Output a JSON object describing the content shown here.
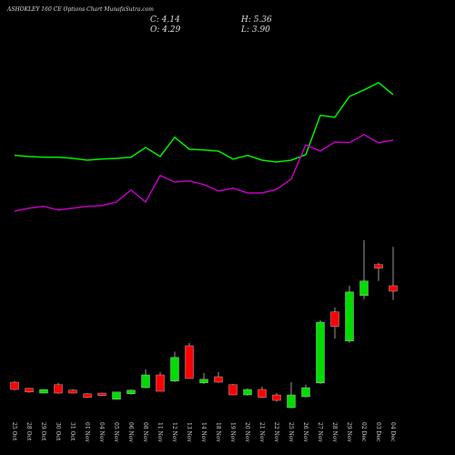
{
  "chart_data": {
    "type": "candlestick",
    "title": "ASHOKLEY 160  CE Options Chart MunafaSutra.com",
    "info": [
      {
        "label": "C: 4.14"
      },
      {
        "label": "H: 5.36"
      },
      {
        "label": "O: 4.29"
      },
      {
        "label": "L: 3.90"
      }
    ],
    "categories": [
      "25 Oct",
      "28 Oct",
      "29 Oct",
      "30 Oct",
      "31 Oct",
      "01 Nov",
      "04 Nov",
      "05 Nov",
      "06 Nov",
      "08 Nov",
      "11 Nov",
      "12 Nov",
      "13 Nov",
      "14 Nov",
      "18 Nov",
      "19 Nov",
      "20 Nov",
      "21 Nov",
      "22 Nov",
      "25 Nov",
      "26 Nov",
      "27 Nov",
      "28 Nov",
      "29 Nov",
      "02 Dec",
      "03 Dec",
      "04 Dec"
    ],
    "open": [
      1.64,
      1.47,
      1.34,
      1.57,
      1.42,
      1.32,
      1.34,
      1.17,
      1.32,
      1.49,
      1.84,
      1.67,
      2.64,
      1.62,
      1.79,
      1.57,
      1.29,
      1.44,
      1.29,
      0.94,
      1.24,
      1.62,
      3.57,
      2.77,
      4.02,
      4.87,
      4.29
    ],
    "high": [
      1.67,
      1.48,
      1.45,
      1.62,
      1.45,
      1.34,
      1.35,
      1.37,
      1.44,
      1.99,
      1.92,
      2.48,
      2.72,
      1.89,
      1.92,
      1.59,
      1.47,
      1.52,
      1.34,
      1.64,
      1.57,
      3.34,
      3.69,
      4.29,
      5.54,
      4.92,
      5.36
    ],
    "low": [
      1.42,
      1.35,
      1.33,
      1.32,
      1.33,
      1.21,
      1.26,
      1.16,
      1.3,
      1.47,
      1.39,
      1.64,
      1.74,
      1.59,
      1.62,
      1.29,
      1.27,
      1.21,
      1.11,
      0.92,
      1.22,
      1.59,
      2.84,
      2.72,
      3.92,
      4.42,
      3.9
    ],
    "close": [
      1.44,
      1.37,
      1.44,
      1.34,
      1.34,
      1.22,
      1.27,
      1.37,
      1.42,
      1.84,
      1.39,
      2.32,
      1.74,
      1.72,
      1.64,
      1.29,
      1.44,
      1.22,
      1.14,
      1.29,
      1.49,
      3.29,
      3.17,
      4.12,
      4.42,
      4.77,
      4.14
    ],
    "up_color": "#00dd00",
    "down_color": "#ff0000",
    "series": [
      {
        "color": "#00ee00",
        "values": [
          7.87,
          7.84,
          7.82,
          7.82,
          7.79,
          7.74,
          7.77,
          7.79,
          7.82,
          8.09,
          7.84,
          8.37,
          8.04,
          8.02,
          7.99,
          7.77,
          7.87,
          7.74,
          7.69,
          7.74,
          7.89,
          8.97,
          8.92,
          9.49,
          9.67,
          9.87,
          9.54
        ]
      },
      {
        "color": "#c000c0",
        "values": [
          6.34,
          6.42,
          6.47,
          6.37,
          6.42,
          6.47,
          6.49,
          6.59,
          6.92,
          6.59,
          7.32,
          7.14,
          7.17,
          7.07,
          6.89,
          6.97,
          6.84,
          6.84,
          6.94,
          7.22,
          8.16,
          7.99,
          8.24,
          8.22,
          8.44,
          8.22,
          8.29
        ]
      }
    ],
    "ylim": [
      0.89,
      12.14
    ]
  }
}
